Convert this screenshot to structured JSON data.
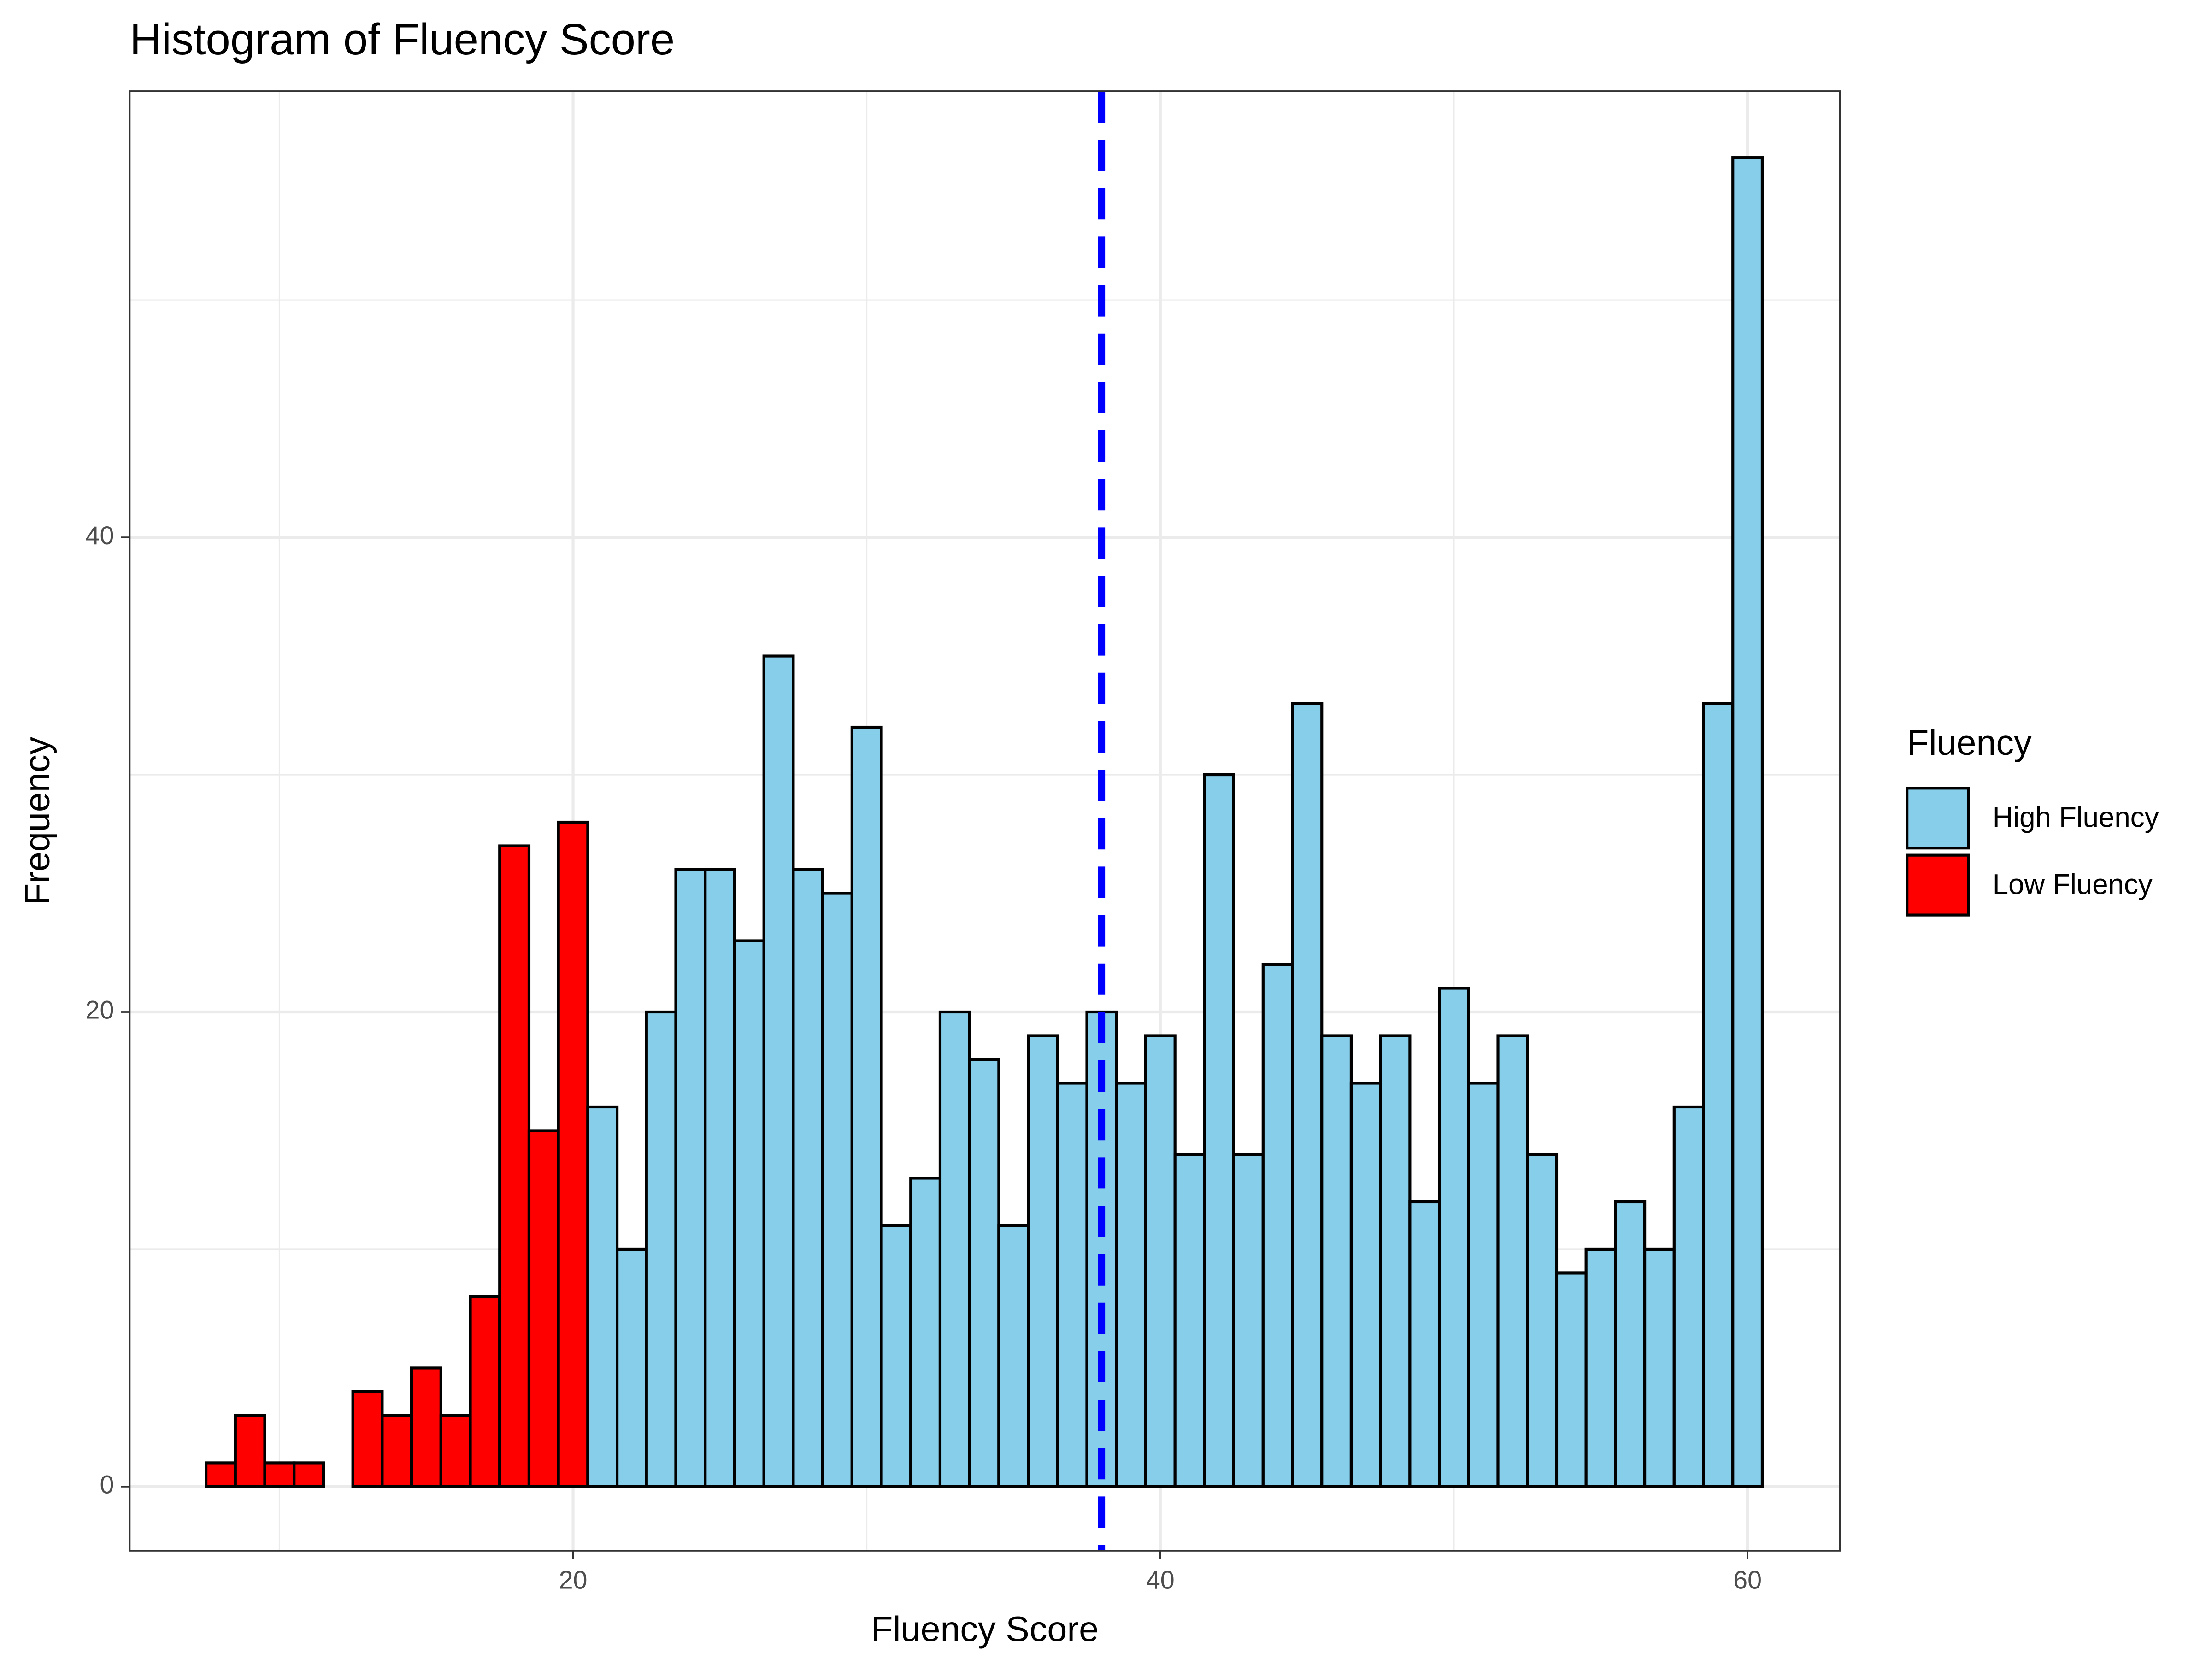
{
  "chart_data": {
    "type": "histogram",
    "title": "Histogram of Fluency Score",
    "x_label": "Fluency Score",
    "y_label": "Frequency",
    "legend_title": "Fluency",
    "legend_position": "right",
    "bins": [
      7.5,
      8.5,
      9.5,
      10.5,
      11.5,
      12.5,
      13.5,
      14.5,
      15.5,
      16.5,
      17.5,
      18.5,
      19.5,
      20.5,
      21.5,
      22.5,
      23.5,
      24.5,
      25.5,
      26.5,
      27.5,
      28.5,
      29.5,
      30.5,
      31.5,
      32.5,
      33.5,
      34.5,
      35.5,
      36.5,
      37.5,
      38.5,
      39.5,
      40.5,
      41.5,
      42.5,
      43.5,
      44.5,
      45.5,
      46.5,
      47.5,
      48.5,
      49.5,
      50.5,
      51.5,
      52.5,
      53.5,
      54.5,
      55.5,
      56.5,
      57.5,
      58.5,
      59.5,
      60.5
    ],
    "series": [
      {
        "name": "High Fluency",
        "color": "#87ceeb",
        "values": [
          0,
          0,
          0,
          0,
          0,
          0,
          0,
          0,
          0,
          0,
          0,
          0,
          0,
          16,
          10,
          20,
          26,
          26,
          23,
          35,
          26,
          25,
          32,
          11,
          13,
          20,
          18,
          11,
          19,
          17,
          20,
          17,
          19,
          14,
          30,
          14,
          22,
          33,
          19,
          17,
          19,
          12,
          21,
          17,
          19,
          14,
          9,
          10,
          12,
          10,
          16,
          33,
          56
        ]
      },
      {
        "name": "Low Fluency",
        "color": "#ff0000",
        "values": [
          1,
          3,
          1,
          1,
          0,
          4,
          3,
          5,
          3,
          8,
          27,
          15,
          28,
          0,
          0,
          0,
          0,
          0,
          0,
          0,
          0,
          0,
          0,
          0,
          0,
          0,
          0,
          0,
          0,
          0,
          0,
          0,
          0,
          0,
          0,
          0,
          0,
          0,
          0,
          0,
          0,
          0,
          0,
          0,
          0,
          0,
          0,
          0,
          0,
          0,
          0,
          0,
          0
        ]
      }
    ],
    "bar_edge_color": "#000000",
    "vline": {
      "value": 38,
      "color": "#0000ff",
      "dash": true
    },
    "xlim": [
      4.9,
      63.15
    ],
    "ylim": [
      -2.7,
      58.8
    ],
    "xticks": [
      20,
      40,
      60
    ],
    "yticks": [
      0,
      20,
      40
    ],
    "x_minor_grid": [
      10,
      30,
      50
    ],
    "y_minor_grid": [
      10,
      30,
      50
    ],
    "grid": true
  }
}
